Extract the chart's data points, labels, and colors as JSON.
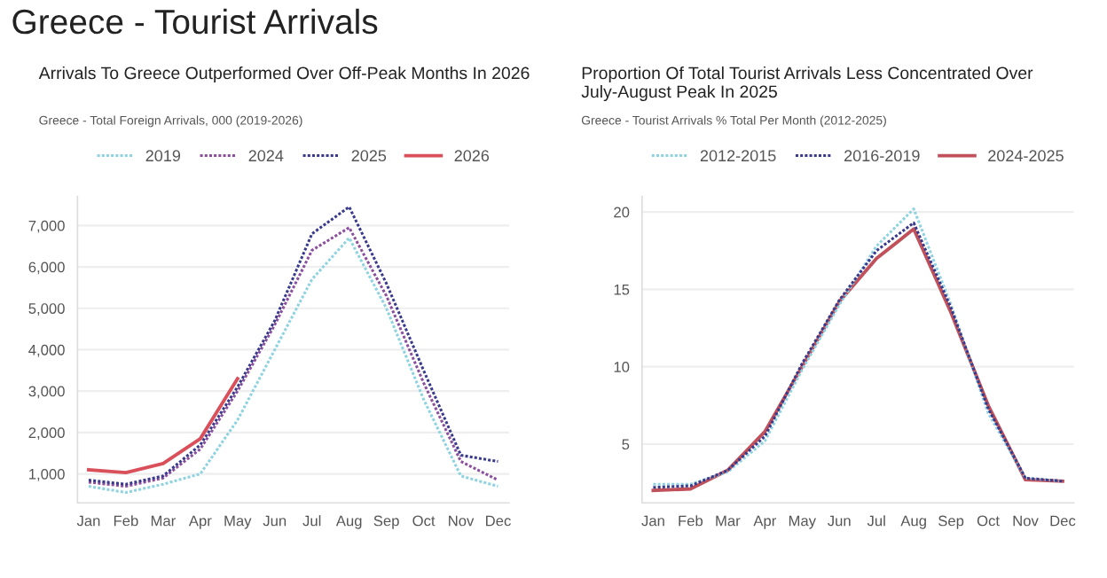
{
  "chart_data": [
    {
      "type": "line",
      "title": "Arrivals To Greece Outperformed Over Off-Peak Months In 2026",
      "subtitle": "Greece - Total Foreign Arrivals, 000 (2019-2026)",
      "annotations": [
        "Greece - Tourist Arrivals"
      ],
      "categories": [
        "Jan",
        "Feb",
        "Mar",
        "Apr",
        "May",
        "Jun",
        "Jul",
        "Aug",
        "Sep",
        "Oct",
        "Nov",
        "Dec"
      ],
      "series": [
        {
          "name": "2019",
          "color": "#8fd3e0",
          "line_style": "dotted",
          "values": [
            700,
            550,
            750,
            1000,
            2300,
            4000,
            5700,
            6700,
            5000,
            2800,
            950,
            700
          ]
        },
        {
          "name": "2024",
          "color": "#8b4f9e",
          "line_style": "dotted",
          "values": [
            800,
            700,
            900,
            1600,
            3000,
            4600,
            6400,
            6950,
            5300,
            3200,
            1300,
            850
          ]
        },
        {
          "name": "2025",
          "color": "#3a3a8c",
          "line_style": "dotted",
          "values": [
            850,
            750,
            950,
            1700,
            3100,
            4700,
            6800,
            7450,
            5600,
            3500,
            1450,
            1300
          ]
        },
        {
          "name": "2026",
          "color": "#d9505a",
          "line_style": "solid",
          "values": [
            1100,
            1030,
            1250,
            1850,
            3300,
            null,
            null,
            null,
            null,
            null,
            null,
            null
          ]
        }
      ],
      "ylim": [
        300,
        7700
      ],
      "yticks": [
        {
          "value": 1000,
          "label": "1,000"
        },
        {
          "value": 2000,
          "label": "2,000"
        },
        {
          "value": 3000,
          "label": "3,000"
        },
        {
          "value": 4000,
          "label": "4,000"
        },
        {
          "value": 5000,
          "label": "5,000"
        },
        {
          "value": 6000,
          "label": "6,000"
        },
        {
          "value": 7000,
          "label": "7,000"
        }
      ],
      "grid": "y",
      "legend": "top",
      "marker": "none"
    },
    {
      "type": "line",
      "title": "Proportion Of Total Tourist Arrivals Less Concentrated Over July-August Peak In 2025",
      "subtitle": "Greece - Tourist Arrivals % Total Per Month (2012-2025)",
      "categories": [
        "Jan",
        "Feb",
        "Mar",
        "Apr",
        "May",
        "Jun",
        "Jul",
        "Aug",
        "Sep",
        "Oct",
        "Nov",
        "Dec"
      ],
      "series": [
        {
          "name": "2012-2015",
          "color": "#8fd3e0",
          "line_style": "dotted",
          "values": [
            2.4,
            2.4,
            3.2,
            5.2,
            9.8,
            14.0,
            17.8,
            20.2,
            14.0,
            7.0,
            2.8,
            2.6
          ]
        },
        {
          "name": "2016-2019",
          "color": "#3a3a8c",
          "line_style": "dotted",
          "values": [
            2.2,
            2.3,
            3.3,
            5.5,
            10.2,
            14.3,
            17.5,
            19.3,
            13.8,
            7.3,
            2.8,
            2.6
          ]
        },
        {
          "name": "2024-2025",
          "color": "#c0505a",
          "line_style": "solid",
          "values": [
            2.0,
            2.1,
            3.3,
            5.8,
            10.0,
            14.2,
            17.0,
            18.9,
            13.5,
            7.5,
            2.7,
            2.6
          ]
        }
      ],
      "ylim": [
        1.2,
        21
      ],
      "yticks": [
        5,
        10,
        15,
        20
      ],
      "grid": "y",
      "legend": "top",
      "marker": "none"
    }
  ]
}
